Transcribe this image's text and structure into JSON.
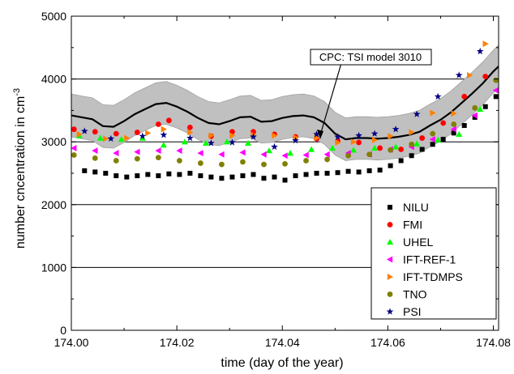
{
  "chart_data": {
    "type": "scatter",
    "title": "",
    "xlabel": "time (day of the year)",
    "ylabel": "number cncentration in cm",
    "ylabel_superscript": "-3",
    "xlim": [
      174.0,
      174.081
    ],
    "ylim": [
      0,
      5000
    ],
    "xticks": [
      174.0,
      174.02,
      174.04,
      174.06,
      174.08
    ],
    "xtick_labels": [
      "174.00",
      "174.02",
      "174.04",
      "174.06",
      "174.08"
    ],
    "yticks": [
      0,
      1000,
      2000,
      3000,
      4000,
      5000
    ],
    "ytick_labels": [
      "0",
      "1000",
      "2000",
      "3000",
      "4000",
      "5000"
    ],
    "grid": "horizontal",
    "legend_position": "lower-right",
    "annotation": "CPC: TSI model 3010",
    "reference": {
      "name": "CPC: TSI model 3010",
      "line_color": "#000000",
      "band_color": "#c0c0c0",
      "band_halfwidth": 340,
      "x": [
        174.0,
        174.002,
        174.004,
        174.006,
        174.008,
        174.01,
        174.012,
        174.014,
        174.016,
        174.018,
        174.02,
        174.022,
        174.024,
        174.026,
        174.028,
        174.03,
        174.032,
        174.034,
        174.036,
        174.038,
        174.04,
        174.042,
        174.044,
        174.046,
        174.048,
        174.05,
        174.052,
        174.054,
        174.056,
        174.058,
        174.06,
        174.062,
        174.064,
        174.066,
        174.068,
        174.07,
        174.072,
        174.074,
        174.076,
        174.078,
        174.08,
        174.081
      ],
      "y": [
        3420,
        3390,
        3360,
        3250,
        3240,
        3330,
        3440,
        3520,
        3600,
        3620,
        3560,
        3480,
        3380,
        3300,
        3280,
        3330,
        3390,
        3400,
        3320,
        3330,
        3380,
        3410,
        3420,
        3390,
        3300,
        3130,
        3040,
        3060,
        3060,
        3050,
        3060,
        3080,
        3110,
        3160,
        3260,
        3350,
        3470,
        3620,
        3770,
        3930,
        4120,
        4200
      ]
    },
    "series": [
      {
        "name": "NILU",
        "marker": "square",
        "color": "#000000",
        "x": [
          174.0025,
          174.0045,
          174.0065,
          174.0085,
          174.0105,
          174.0125,
          174.0145,
          174.0165,
          174.0185,
          174.0205,
          174.0225,
          174.0245,
          174.0265,
          174.0285,
          174.0305,
          174.0325,
          174.0345,
          174.0365,
          174.0385,
          174.0405,
          174.0425,
          174.0445,
          174.0465,
          174.0485,
          174.0505,
          174.0525,
          174.0545,
          174.0565,
          174.0585,
          174.0605,
          174.0625,
          174.0645,
          174.0665,
          174.0685,
          174.0705,
          174.0725,
          174.0745,
          174.0765,
          174.0785,
          174.0805
        ],
        "y": [
          2540,
          2520,
          2500,
          2460,
          2440,
          2460,
          2480,
          2460,
          2490,
          2480,
          2500,
          2460,
          2440,
          2420,
          2440,
          2460,
          2480,
          2420,
          2440,
          2390,
          2460,
          2480,
          2500,
          2500,
          2510,
          2530,
          2520,
          2540,
          2550,
          2620,
          2700,
          2780,
          2880,
          2960,
          3040,
          3140,
          3260,
          3390,
          3560,
          3720
        ]
      },
      {
        "name": "FMI",
        "marker": "circle",
        "color": "#ff0000",
        "x": [
          174.0005,
          174.0045,
          174.0085,
          174.0125,
          174.0165,
          174.0185,
          174.0225,
          174.0265,
          174.0305,
          174.0345,
          174.0385,
          174.0425,
          174.0465,
          174.0505,
          174.0545,
          174.0585,
          174.0625,
          174.0665,
          174.0705,
          174.0745,
          174.0785
        ],
        "y": [
          3200,
          3160,
          3130,
          3150,
          3280,
          3340,
          3230,
          3090,
          3160,
          3160,
          3120,
          3080,
          3050,
          3010,
          2990,
          2900,
          2880,
          3060,
          3300,
          3720,
          4040
        ]
      },
      {
        "name": "UHEL",
        "marker": "triangle-up",
        "color": "#00ff00",
        "x": [
          174.0015,
          174.0055,
          174.0095,
          174.0135,
          174.0175,
          174.0215,
          174.0255,
          174.0295,
          174.0335,
          174.0375,
          174.0415,
          174.0455,
          174.0495,
          174.0535,
          174.0575,
          174.0615,
          174.0655,
          174.0695,
          174.0735,
          174.0775
        ],
        "y": [
          3100,
          3060,
          3040,
          3060,
          2950,
          3000,
          2980,
          3000,
          2980,
          2860,
          2820,
          2880,
          2900,
          2870,
          2900,
          2920,
          2970,
          3030,
          3120,
          3520
        ]
      },
      {
        "name": "IFT-REF-1",
        "marker": "triangle-left",
        "color": "#ff00ff",
        "x": [
          174.0005,
          174.0045,
          174.0085,
          174.0125,
          174.0165,
          174.0205,
          174.0245,
          174.0285,
          174.0325,
          174.0365,
          174.0405,
          174.0445,
          174.0485,
          174.0525,
          174.0565,
          174.0605,
          174.0645,
          174.0685,
          174.0725,
          174.0765,
          174.0805
        ],
        "y": [
          2900,
          2860,
          2820,
          2840,
          2860,
          2860,
          2820,
          2800,
          2830,
          2800,
          2780,
          2790,
          2800,
          2820,
          2800,
          2880,
          2920,
          3040,
          3200,
          3420,
          3820
        ]
      },
      {
        "name": "IFT-TDMPS",
        "marker": "triangle-right",
        "color": "#ff8000",
        "x": [
          174.0015,
          174.0065,
          174.0105,
          174.0145,
          174.0175,
          174.0225,
          174.0265,
          174.0305,
          174.0345,
          174.0385,
          174.0425,
          174.0465,
          174.0505,
          174.0535,
          174.0575,
          174.0605,
          174.0645,
          174.0685,
          174.0725,
          174.0755,
          174.0785
        ],
        "y": [
          3120,
          3050,
          3060,
          3140,
          3200,
          3150,
          3100,
          3100,
          3110,
          3100,
          3070,
          3060,
          2990,
          3000,
          3030,
          3090,
          3150,
          3460,
          3450,
          4060,
          4560
        ]
      },
      {
        "name": "TNO",
        "marker": "circle",
        "color": "#808000",
        "x": [
          174.0005,
          174.0045,
          174.0085,
          174.0125,
          174.0165,
          174.0205,
          174.0245,
          174.0285,
          174.0325,
          174.0365,
          174.0405,
          174.0445,
          174.0485,
          174.0525,
          174.0565,
          174.0605,
          174.0645,
          174.0685,
          174.0725,
          174.0765,
          174.0805
        ],
        "y": [
          2790,
          2740,
          2700,
          2730,
          2750,
          2700,
          2660,
          2640,
          2680,
          2640,
          2650,
          2700,
          2720,
          2780,
          2800,
          2870,
          2960,
          3130,
          3280,
          3540,
          3980
        ]
      },
      {
        "name": "PSI",
        "marker": "star",
        "color": "#000080",
        "x": [
          174.0025,
          174.0075,
          174.0135,
          174.0175,
          174.0225,
          174.0265,
          174.0305,
          174.0345,
          174.0385,
          174.0425,
          174.0465,
          174.0505,
          174.0545,
          174.0575,
          174.0615,
          174.0655,
          174.0695,
          174.0735,
          174.0775
        ],
        "y": [
          3170,
          3050,
          3090,
          3110,
          3060,
          2980,
          2990,
          3080,
          2920,
          3020,
          3120,
          3080,
          3100,
          3130,
          3200,
          3440,
          3720,
          4060,
          4440
        ]
      }
    ]
  }
}
